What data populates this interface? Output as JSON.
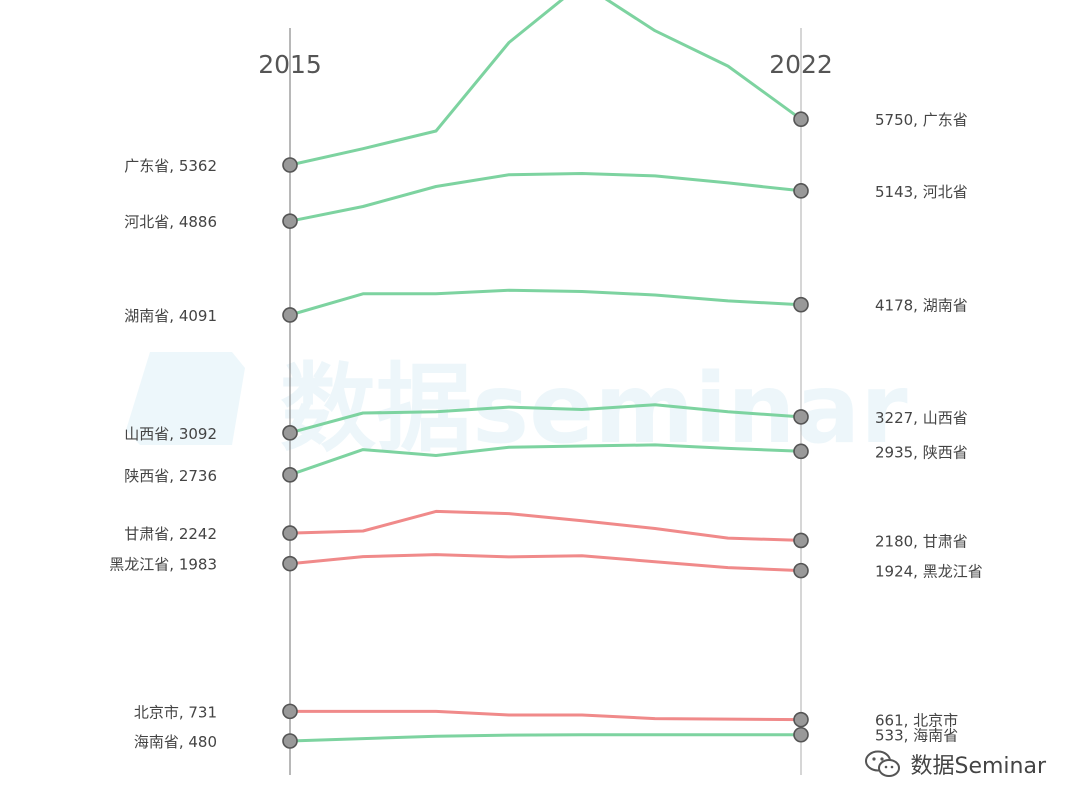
{
  "chart_data": {
    "type": "line",
    "start_year": "2015",
    "end_year": "2022",
    "ylim": [
      0,
      6300
    ],
    "series": [
      {
        "name": "广东省",
        "color": "#7dd3a0",
        "values": [
          5362,
          5500,
          5650,
          6400,
          6900,
          6500,
          6200,
          5750
        ],
        "left_label": "广东省, 5362",
        "right_label": "5750, 广东省"
      },
      {
        "name": "河北省",
        "color": "#7dd3a0",
        "values": [
          4886,
          5010,
          5180,
          5280,
          5290,
          5270,
          5210,
          5143
        ],
        "left_label": "河北省, 4886",
        "right_label": "5143, 河北省"
      },
      {
        "name": "湖南省",
        "color": "#7dd3a0",
        "values": [
          4091,
          4270,
          4270,
          4300,
          4290,
          4260,
          4210,
          4178
        ],
        "left_label": "湖南省, 4091",
        "right_label": "4178, 湖南省"
      },
      {
        "name": "山西省",
        "color": "#7dd3a0",
        "values": [
          3092,
          3260,
          3270,
          3310,
          3290,
          3330,
          3270,
          3227
        ],
        "left_label": "山西省, 3092",
        "right_label": "3227, 山西省"
      },
      {
        "name": "陕西省",
        "color": "#7dd3a0",
        "values": [
          2736,
          2950,
          2900,
          2970,
          2980,
          2990,
          2960,
          2935
        ],
        "left_label": "陕西省, 2736",
        "right_label": "2935, 陕西省"
      },
      {
        "name": "甘肃省",
        "color": "#f08a8a",
        "values": [
          2242,
          2260,
          2426,
          2407,
          2347,
          2281,
          2200,
          2180
        ],
        "left_label": "甘肃省, 2242",
        "right_label": "2180, 甘肃省"
      },
      {
        "name": "黑龙江省",
        "color": "#f08a8a",
        "values": [
          1983,
          2043,
          2060,
          2040,
          2050,
          2000,
          1950,
          1924
        ],
        "left_label": "黑龙江省, 1983",
        "right_label": "1924, 黑龙江省"
      },
      {
        "name": "北京市",
        "color": "#f08a8a",
        "values": [
          731,
          731,
          731,
          700,
          700,
          670,
          666,
          661
        ],
        "left_label": "北京市, 731",
        "right_label": "661, 北京市"
      },
      {
        "name": "海南省",
        "color": "#7dd3a0",
        "values": [
          480,
          500,
          520,
          530,
          533,
          533,
          533,
          533
        ],
        "left_label": "海南省, 480",
        "right_label": "533, 海南省"
      }
    ]
  },
  "watermark": "数据seminar",
  "brand": {
    "text": "数据Seminar",
    "icon": "wechat-icon"
  }
}
